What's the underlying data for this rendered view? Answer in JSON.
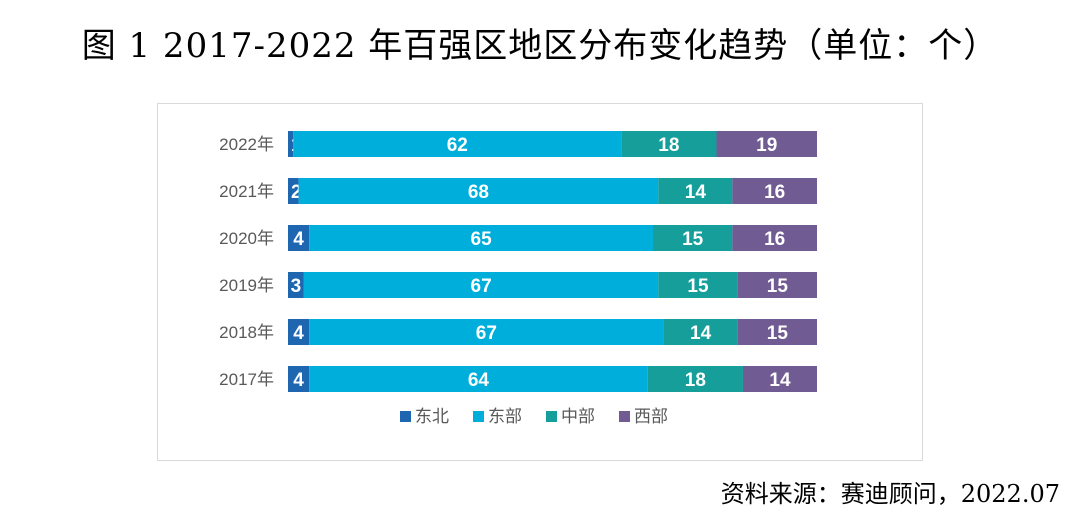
{
  "title": "图 1 2017-2022 年百强区地区分布变化趋势（单位：个）",
  "source": {
    "label": "资料来源：",
    "text": "赛迪顾问，2022.07"
  },
  "colors": {
    "东北": "#1f66b0",
    "东部": "#00aedb",
    "中部": "#159e9a",
    "西部": "#705c93"
  },
  "chart_data": {
    "type": "bar",
    "orientation": "horizontal",
    "stacked": true,
    "categories": [
      "2022年",
      "2021年",
      "2020年",
      "2019年",
      "2018年",
      "2017年"
    ],
    "series": [
      {
        "name": "东北",
        "values": [
          1,
          2,
          4,
          3,
          4,
          4
        ]
      },
      {
        "name": "东部",
        "values": [
          62,
          68,
          65,
          67,
          67,
          64
        ]
      },
      {
        "name": "中部",
        "values": [
          18,
          14,
          15,
          15,
          14,
          18
        ]
      },
      {
        "name": "西部",
        "values": [
          19,
          16,
          16,
          15,
          15,
          14
        ]
      }
    ],
    "data_labels": true,
    "legend": "bottom",
    "grid": false
  }
}
